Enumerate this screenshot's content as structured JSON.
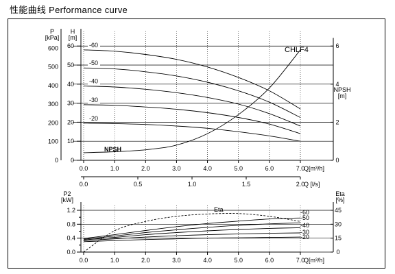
{
  "page": {
    "heading": "性能曲线  Performance curve"
  },
  "chart_data": [
    {
      "type": "line",
      "title": "CHLF4",
      "x": {
        "label": "Q[m³/h]",
        "range": [
          0,
          7
        ],
        "ticks": [
          "0.0",
          "1.0",
          "2.0",
          "3.0",
          "4.0",
          "5.0",
          "6.0",
          "7.0"
        ]
      },
      "x2": {
        "label": "Q [l/s]",
        "range": [
          0,
          2
        ],
        "ticks": [
          "0.0",
          "0.5",
          "1.0",
          "1.5",
          "2.0"
        ]
      },
      "y_left_outer": {
        "label": "P\n[kPa]",
        "range": [
          0,
          600
        ],
        "ticks": [
          "0",
          "100",
          "200",
          "300",
          "400",
          "500",
          "600"
        ]
      },
      "y_left_inner": {
        "label": "H\n[m]",
        "range": [
          0,
          60
        ],
        "ticks": [
          "0",
          "10",
          "20",
          "30",
          "40",
          "50",
          "60"
        ]
      },
      "y_right": {
        "label": "NPSH\n[m]",
        "range": [
          0,
          6
        ],
        "ticks": [
          "0",
          "2",
          "4",
          "6"
        ]
      },
      "grid": true,
      "series": [
        {
          "name": "-20",
          "axis": "H",
          "x": [
            0,
            1,
            2,
            3,
            4,
            5,
            6,
            7
          ],
          "values": [
            19.5,
            19.3,
            18.8,
            18,
            16.8,
            15,
            12.8,
            10
          ]
        },
        {
          "name": "-30",
          "axis": "H",
          "x": [
            0,
            1,
            2,
            3,
            4,
            5,
            6,
            7
          ],
          "values": [
            29.2,
            28.9,
            28,
            26.8,
            25,
            22.5,
            19,
            14
          ]
        },
        {
          "name": "-40",
          "axis": "H",
          "x": [
            0,
            1,
            2,
            3,
            4,
            5,
            6,
            7
          ],
          "values": [
            39,
            38.5,
            37.3,
            35.5,
            33,
            29.5,
            24.5,
            18
          ]
        },
        {
          "name": "-50",
          "axis": "H",
          "x": [
            0,
            1,
            2,
            3,
            4,
            5,
            6,
            7
          ],
          "values": [
            48.5,
            48,
            46.5,
            44.3,
            41,
            36.5,
            30.5,
            22.5
          ]
        },
        {
          "name": "-60",
          "axis": "H",
          "x": [
            0,
            1,
            2,
            3,
            4,
            5,
            6,
            7
          ],
          "values": [
            58,
            57.3,
            55.6,
            53,
            49,
            43.5,
            36.5,
            27
          ]
        },
        {
          "name": "NPSH",
          "axis": "NPSH",
          "x": [
            0,
            1,
            2,
            3,
            4,
            5,
            6,
            7
          ],
          "values": [
            0.4,
            0.45,
            0.55,
            0.8,
            1.4,
            2.4,
            3.8,
            5.8
          ]
        }
      ]
    },
    {
      "type": "line",
      "x": {
        "label": "Q[m³/h]",
        "range": [
          0,
          7
        ],
        "ticks": [
          "0.0",
          "1.0",
          "2.0",
          "3.0",
          "4.0",
          "5.0",
          "6.0",
          "7.0"
        ]
      },
      "y_left": {
        "label": "P2\n[kW]",
        "range": [
          0,
          1.2
        ],
        "ticks": [
          "0.0",
          "0.4",
          "0.8",
          "1.2"
        ],
        "minor_ticks": [
          "0.2",
          "0.6",
          "1.0"
        ]
      },
      "y_right": {
        "label": "Eta\n[%]",
        "range": [
          0,
          45
        ],
        "ticks": [
          "0",
          "15",
          "30",
          "45"
        ]
      },
      "grid": true,
      "series": [
        {
          "name": "-20",
          "axis": "P2",
          "x": [
            0,
            1,
            2,
            3,
            4,
            5,
            6,
            7
          ],
          "values": [
            0.3,
            0.33,
            0.36,
            0.38,
            0.4,
            0.41,
            0.42,
            0.43
          ]
        },
        {
          "name": "-30",
          "axis": "P2",
          "x": [
            0,
            1,
            2,
            3,
            4,
            5,
            6,
            7
          ],
          "values": [
            0.33,
            0.38,
            0.43,
            0.47,
            0.5,
            0.52,
            0.54,
            0.55
          ]
        },
        {
          "name": "-40",
          "axis": "P2",
          "x": [
            0,
            1,
            2,
            3,
            4,
            5,
            6,
            7
          ],
          "values": [
            0.35,
            0.42,
            0.5,
            0.56,
            0.61,
            0.65,
            0.68,
            0.7
          ]
        },
        {
          "name": "-50",
          "axis": "P2",
          "x": [
            0,
            1,
            2,
            3,
            4,
            5,
            6,
            7
          ],
          "values": [
            0.37,
            0.46,
            0.56,
            0.64,
            0.71,
            0.77,
            0.81,
            0.84
          ]
        },
        {
          "name": "-60",
          "axis": "P2",
          "x": [
            0,
            1,
            2,
            3,
            4,
            5,
            6,
            7
          ],
          "values": [
            0.39,
            0.5,
            0.62,
            0.73,
            0.82,
            0.89,
            0.95,
            0.98
          ]
        },
        {
          "name": "Eta",
          "axis": "Eta",
          "dashed": true,
          "x": [
            0,
            1,
            2,
            3,
            4,
            5,
            6,
            7
          ],
          "values": [
            0,
            23,
            33,
            38.5,
            41,
            41.5,
            38.5,
            33
          ]
        }
      ]
    }
  ]
}
